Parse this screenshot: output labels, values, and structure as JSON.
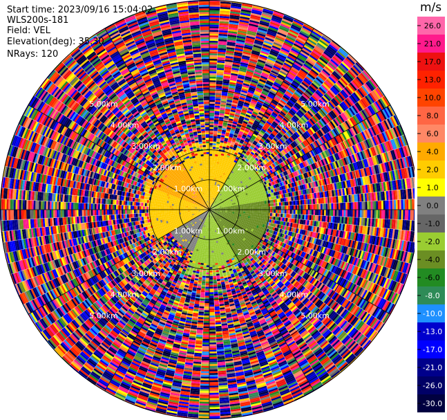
{
  "header": {
    "start_time": "Start time: 2023/09/16 15:04:02",
    "instrument": "WLS200s-181",
    "field": "Field: VEL",
    "elevation": "Elevation(deg): 35.30",
    "nrays": "NRays: 120"
  },
  "colorbar": {
    "unit": "m/s",
    "ticks": [
      "26.0",
      "21.0",
      "17.0",
      "13.0",
      "10.0",
      "8.0",
      "6.0",
      "4.0",
      "2.0",
      "1.0",
      "0.0",
      "-1.0",
      "-2.0",
      "-4.0",
      "-6.0",
      "-8.0",
      "-10.0",
      "-13.0",
      "-17.0",
      "-21.0",
      "-26.0",
      "-30.0"
    ],
    "colors": [
      "#ff66aa",
      "#ff1a8c",
      "#ee1111",
      "#ff2200",
      "#ff4400",
      "#ff6644",
      "#ff8866",
      "#ffaa00",
      "#ffcc00",
      "#ffff00",
      "#808080",
      "#666666",
      "#9acd32",
      "#6b8e23",
      "#228b22",
      "#2e8b57",
      "#1e90ff",
      "#0000cd",
      "#0000ff",
      "#00008b",
      "#000066",
      "#000040"
    ]
  },
  "chart_data": {
    "type": "heatmap",
    "subtype": "radar PPI (plan position indicator)",
    "field": "VEL",
    "units": "m/s",
    "elevation_deg": 35.3,
    "n_rays": 120,
    "range_ring_labels_km": [
      "1.00km",
      "2.00km",
      "3.00km",
      "4.00km",
      "5.00km"
    ],
    "range_rings_km": [
      1,
      2,
      3,
      4,
      5
    ],
    "max_range_km": 7.0,
    "azimuth_lines_deg": [
      0,
      30,
      60,
      90,
      120,
      150,
      180,
      210,
      240,
      270,
      300,
      330
    ],
    "inner_region_pattern": [
      {
        "sector_from_deg": 0,
        "sector_to_deg": 30,
        "max_range_km": 1.8,
        "velocity_ms": 2.0,
        "color_hint": "yellow"
      },
      {
        "sector_from_deg": 30,
        "sector_to_deg": 80,
        "max_range_km": 2.0,
        "velocity_ms": -2.0,
        "color_hint": "yellowgreen"
      },
      {
        "sector_from_deg": 80,
        "sector_to_deg": 150,
        "max_range_km": 2.0,
        "velocity_ms": -4.0,
        "color_hint": "green"
      },
      {
        "sector_from_deg": 150,
        "sector_to_deg": 200,
        "max_range_km": 1.8,
        "velocity_ms": -2.0,
        "color_hint": "olive"
      },
      {
        "sector_from_deg": 200,
        "sector_to_deg": 240,
        "max_range_km": 1.5,
        "velocity_ms": 0.0,
        "color_hint": "gray"
      },
      {
        "sector_from_deg": 240,
        "sector_to_deg": 290,
        "max_range_km": 2.0,
        "velocity_ms": 2.0,
        "color_hint": "yellow"
      },
      {
        "sector_from_deg": 290,
        "sector_to_deg": 330,
        "max_range_km": 1.8,
        "velocity_ms": 4.0,
        "color_hint": "orange"
      },
      {
        "sector_from_deg": 330,
        "sector_to_deg": 360,
        "max_range_km": 1.8,
        "velocity_ms": 2.0,
        "color_hint": "yellow"
      }
    ],
    "outer_region": "noise (random velocities) beyond ~2 km"
  }
}
